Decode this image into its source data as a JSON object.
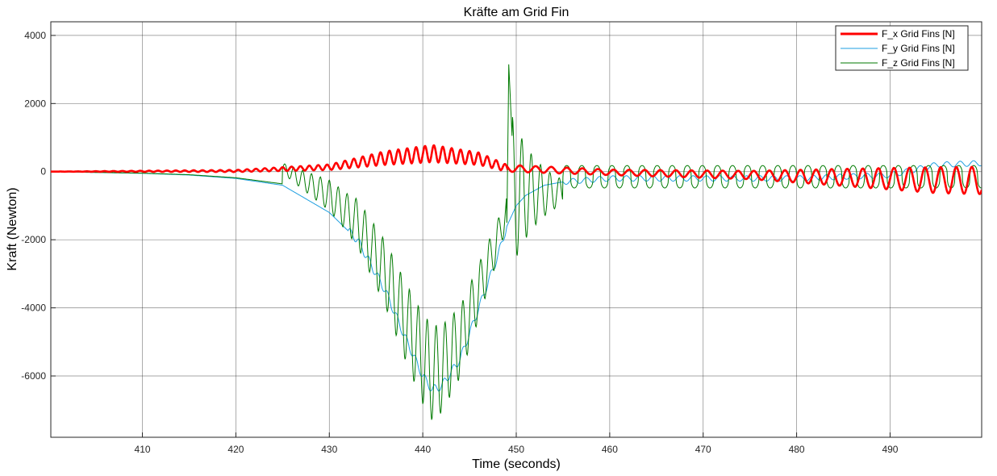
{
  "chart_data": {
    "type": "line",
    "title": "Kräfte am Grid Fin",
    "xlabel": "Time (seconds)",
    "ylabel": "Kraft (Newton)",
    "xlim": [
      400.2,
      499.8
    ],
    "ylim": [
      -7800,
      4400
    ],
    "xticks": [
      410,
      420,
      430,
      440,
      450,
      460,
      470,
      480,
      490
    ],
    "yticks": [
      -6000,
      -4000,
      -2000,
      0,
      2000,
      4000
    ],
    "grid": true,
    "legend_position": "top-right",
    "series": [
      {
        "name": "F_x Grid Fins [N]",
        "color": "#ff0000",
        "stroke": "thick",
        "description": "oscillating force rising to ~700 N peak near t=441, dropping after 449, then growing negative oscillation",
        "envelope_points": [
          {
            "x": 400.2,
            "center": 0,
            "amp": 0
          },
          {
            "x": 420,
            "center": 20,
            "amp": 30
          },
          {
            "x": 430,
            "center": 130,
            "amp": 80
          },
          {
            "x": 436,
            "center": 400,
            "amp": 200
          },
          {
            "x": 441,
            "center": 530,
            "amp": 250
          },
          {
            "x": 446,
            "center": 380,
            "amp": 180
          },
          {
            "x": 449,
            "center": 100,
            "amp": 100
          },
          {
            "x": 460,
            "center": -20,
            "amp": 80
          },
          {
            "x": 475,
            "center": -100,
            "amp": 120
          },
          {
            "x": 485,
            "center": -170,
            "amp": 250
          },
          {
            "x": 495,
            "center": -250,
            "amp": 380
          },
          {
            "x": 499.8,
            "center": -260,
            "amp": 400
          }
        ]
      },
      {
        "name": "F_y Grid Fins [N]",
        "color": "#1e9fe0",
        "stroke": "thin",
        "points": [
          [
            400.2,
            0
          ],
          [
            410,
            -50
          ],
          [
            415,
            -100
          ],
          [
            420,
            -200
          ],
          [
            425,
            -400
          ],
          [
            430,
            -1200
          ],
          [
            433,
            -2000
          ],
          [
            436,
            -3500
          ],
          [
            438,
            -4800
          ],
          [
            440,
            -6000
          ],
          [
            441,
            -6400
          ],
          [
            442,
            -6300
          ],
          [
            444,
            -5500
          ],
          [
            446,
            -4000
          ],
          [
            448,
            -2500
          ],
          [
            449,
            -1600
          ],
          [
            450,
            -1000
          ],
          [
            451,
            -700
          ],
          [
            453,
            -400
          ],
          [
            455,
            -300
          ],
          [
            460,
            -200
          ],
          [
            470,
            -200
          ],
          [
            475,
            -200
          ],
          [
            480,
            -200
          ],
          [
            485,
            -150
          ],
          [
            490,
            -100
          ],
          [
            495,
            200
          ],
          [
            499.8,
            250
          ]
        ]
      },
      {
        "name": "F_z Grid Fins [N]",
        "color": "#007a00",
        "stroke": "thin",
        "description": "follows F_y dip with large oscillations up to ±1200 N, spike to ~3150 N at t≈449.2, then square-like oscillation ±300 N",
        "spike": {
          "x": 449.2,
          "y": 3150
        }
      }
    ]
  }
}
